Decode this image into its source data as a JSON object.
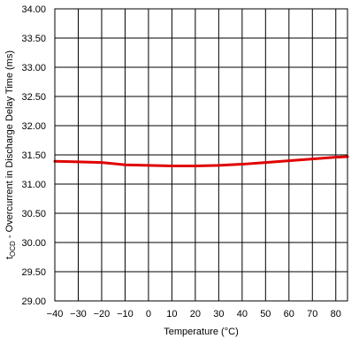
{
  "chart_data": {
    "type": "line",
    "title": "",
    "xlabel": "Temperature (°C)",
    "ylabel_main": "t",
    "ylabel_sub": "OCD",
    "ylabel_rest": " - Overcurrent in Discharge Delay Time (ms)",
    "xlim": [
      -40,
      85
    ],
    "ylim": [
      29.0,
      34.0
    ],
    "x_ticks": [
      -40,
      -30,
      -20,
      -10,
      0,
      10,
      20,
      30,
      40,
      50,
      60,
      70,
      80
    ],
    "x_tick_labels": [
      "−40",
      "−30",
      "−20",
      "−10",
      "0",
      "10",
      "20",
      "30",
      "40",
      "50",
      "60",
      "70",
      "80"
    ],
    "y_ticks": [
      29.0,
      29.5,
      30.0,
      30.5,
      31.0,
      31.5,
      32.0,
      32.5,
      33.0,
      33.5,
      34.0
    ],
    "y_tick_labels": [
      "29.00",
      "29.50",
      "30.00",
      "30.50",
      "31.00",
      "31.50",
      "32.00",
      "32.50",
      "33.00",
      "33.50",
      "34.00"
    ],
    "grid": true,
    "series": [
      {
        "color": "#e00000",
        "x": [
          -40,
          -30,
          -20,
          -10,
          0,
          10,
          20,
          30,
          40,
          50,
          60,
          70,
          80,
          85
        ],
        "y": [
          31.39,
          31.38,
          31.37,
          31.33,
          31.32,
          31.31,
          31.31,
          31.32,
          31.34,
          31.37,
          31.4,
          31.43,
          31.46,
          31.47
        ]
      }
    ]
  }
}
